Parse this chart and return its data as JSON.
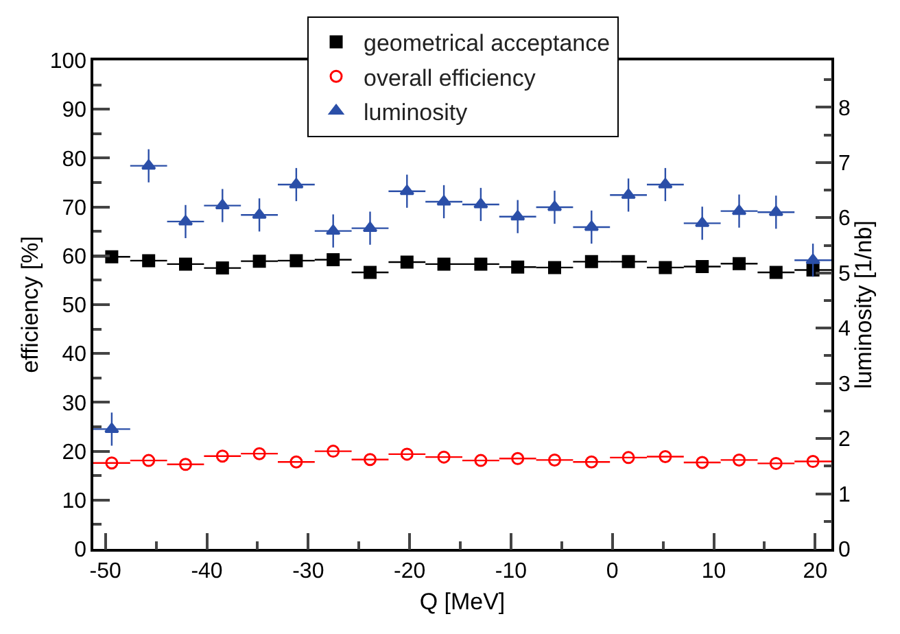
{
  "chart_data": {
    "type": "scatter",
    "xlabel": "Q [MeV]",
    "ylabel": "efficiency [%]",
    "y2label": "luminosity [1/nb]",
    "x": [
      -49.38,
      -45.74,
      -42.1,
      -38.46,
      -34.82,
      -31.18,
      -27.54,
      -23.9,
      -20.26,
      -16.62,
      -12.98,
      -9.34,
      -5.7,
      -2.06,
      1.58,
      5.22,
      8.86,
      12.5,
      16.14,
      19.78
    ],
    "xlim": [
      -51.2,
      21.6
    ],
    "xticks": [
      -50,
      -40,
      -30,
      -20,
      -10,
      0,
      10,
      20
    ],
    "ylim": [
      0,
      100
    ],
    "yticks": [
      0,
      10,
      20,
      30,
      40,
      50,
      60,
      70,
      80,
      90,
      100
    ],
    "y2lim": [
      0,
      8.85
    ],
    "y2ticks": [
      0,
      1,
      2,
      3,
      4,
      5,
      6,
      7,
      8
    ],
    "grid": false,
    "legend": "top",
    "series": [
      {
        "name": "geometrical acceptance",
        "color": "#000000",
        "marker": "square",
        "values": [
          59.8,
          59,
          58.3,
          57.5,
          58.9,
          59,
          59.2,
          56.6,
          58.7,
          58.3,
          58.3,
          57.7,
          57.6,
          58.8,
          58.8,
          57.6,
          57.8,
          58.4,
          56.6,
          57.1
        ],
        "errors": [
          0.8,
          0.8,
          0.8,
          0.8,
          0.8,
          0.8,
          0.8,
          0.8,
          0.8,
          0.8,
          0.8,
          0.8,
          0.8,
          0.8,
          0.8,
          0.8,
          0.8,
          0.8,
          0.8,
          0.8
        ],
        "xerrors": [
          1.82,
          1.82,
          1.82,
          1.82,
          1.82,
          1.82,
          1.82,
          1.82,
          1.82,
          1.82,
          1.82,
          1.82,
          1.82,
          1.82,
          1.82,
          1.82,
          1.82,
          1.82,
          1.82,
          1.82
        ]
      },
      {
        "name": "overall efficiency",
        "color": "#ff0000",
        "marker": "circle",
        "values": [
          17.6,
          18.1,
          17.3,
          19,
          19.5,
          17.8,
          20,
          18.3,
          19.4,
          18.8,
          18.1,
          18.5,
          18.2,
          17.8,
          18.7,
          18.9,
          17.7,
          18.2,
          17.5,
          17.9
        ],
        "xerrors": [
          1.82,
          1.82,
          1.82,
          1.82,
          1.82,
          1.82,
          1.82,
          1.82,
          1.82,
          1.82,
          1.82,
          1.82,
          1.82,
          1.82,
          1.82,
          1.82,
          1.82,
          1.82,
          1.82,
          1.82
        ]
      },
      {
        "name": "luminosity",
        "color": "#2b4fa8",
        "marker": "triangle",
        "axis": "y2",
        "values": [
          2.17,
          6.94,
          5.93,
          6.22,
          6.05,
          6.6,
          5.76,
          5.81,
          6.48,
          6.29,
          6.24,
          6.02,
          6.19,
          5.83,
          6.41,
          6.6,
          5.9,
          6.12,
          6.1,
          5.23
        ],
        "errors": [
          0.3,
          0.3,
          0.3,
          0.3,
          0.3,
          0.3,
          0.3,
          0.3,
          0.3,
          0.3,
          0.3,
          0.3,
          0.3,
          0.3,
          0.3,
          0.3,
          0.3,
          0.3,
          0.3,
          0.3
        ],
        "xerrors": [
          1.82,
          1.82,
          1.82,
          1.82,
          1.82,
          1.82,
          1.82,
          1.82,
          1.82,
          1.82,
          1.82,
          1.82,
          1.82,
          1.82,
          1.82,
          1.82,
          1.82,
          1.82,
          1.82,
          1.82
        ]
      }
    ]
  }
}
